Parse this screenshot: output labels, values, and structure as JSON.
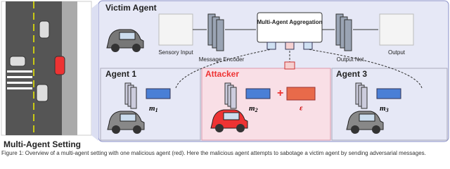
{
  "left_panel": {
    "label": "Multi-Agent Setting"
  },
  "victim": {
    "title": "Victim Agent",
    "sensory_input": "Sensory Input",
    "encoder": "Message Encoder",
    "aggregation": "Multi-Agent Aggregation",
    "output_net": "Output Net",
    "output": "Output"
  },
  "agents": [
    {
      "title": "Agent 1",
      "message": {
        "symbol": "m",
        "subscript": "1"
      }
    },
    {
      "title": "Attacker",
      "message": {
        "symbol": "m",
        "subscript": "2"
      },
      "perturbation": "ε"
    },
    {
      "title": "Agent 3",
      "message": {
        "symbol": "m",
        "subscript": "3"
      }
    }
  ],
  "caption": "Figure 1: Overview of a multi-agent setting with one malicious agent (red). Here the malicious agent attempts to sabotage a victim agent by sending adversarial messages."
}
